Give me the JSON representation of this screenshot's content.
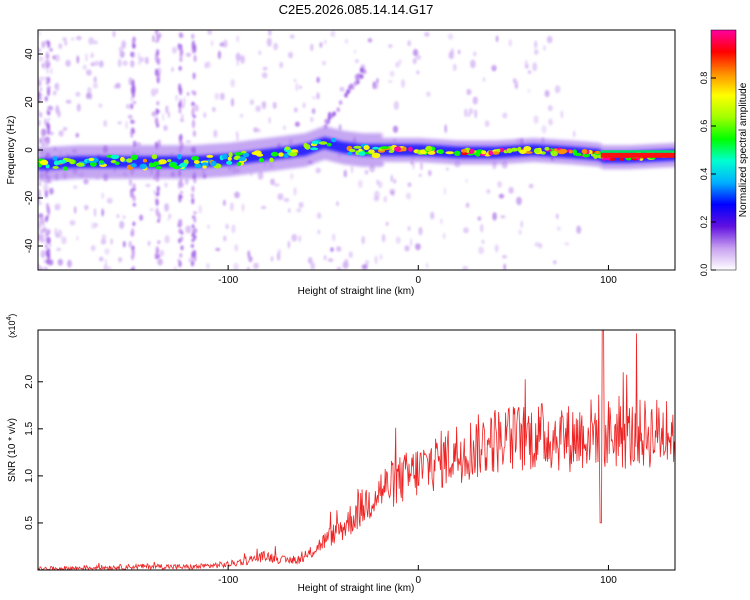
{
  "figure_title": "C2E5.2026.085.14.14.G17",
  "chart_data": [
    {
      "type": "heatmap",
      "title": "C2E5.2026.085.14.14.G17",
      "xlabel": "Height of straight line (km)",
      "ylabel": "Frequency (Hz)",
      "xlim": [
        -200,
        135
      ],
      "ylim": [
        -50,
        50
      ],
      "xticks": [
        -100,
        0,
        100
      ],
      "yticks": [
        -40,
        -20,
        0,
        20,
        40
      ],
      "colorbar": {
        "label": "Normalized spectral amplitude",
        "range": [
          0,
          1
        ],
        "ticks": [
          "0.0",
          "0.2",
          "0.4",
          "0.6",
          "0.8"
        ],
        "colors": [
          "#ffffff",
          "#c8a0f0",
          "#6010e0",
          "#0000ff",
          "#00b0ff",
          "#00ffd0",
          "#00ff00",
          "#a0ff00",
          "#ffff00",
          "#ff9000",
          "#ff0000",
          "#ff00a0"
        ]
      },
      "ridge": {
        "x": [
          -200,
          -180,
          -160,
          -140,
          -120,
          -100,
          -80,
          -60,
          -50,
          -40,
          -30,
          -20,
          0,
          20,
          40,
          60,
          80,
          95,
          96,
          110,
          135
        ],
        "y": [
          -6,
          -5,
          -5,
          -5,
          -5,
          -4,
          -2,
          0,
          3,
          1,
          0,
          0,
          0,
          -1,
          -1,
          0,
          -1,
          -2,
          -3,
          -3,
          -2
        ]
      },
      "branch": {
        "x": [
          -50,
          -45,
          -40,
          -35,
          -30
        ],
        "y": [
          10,
          15,
          20,
          26,
          32
        ]
      },
      "vertical_streaks_x": [
        -195,
        -150,
        -137,
        -125,
        -118
      ]
    },
    {
      "type": "line",
      "xlabel": "Height of straight line (km)",
      "ylabel": "SNR (10 * v/v)",
      "y_scale_label": "(x10",
      "y_scale_exponent": "4",
      "y_scale_close": ")",
      "xlim": [
        -200,
        135
      ],
      "ylim": [
        0,
        2.55
      ],
      "xticks": [
        -100,
        0,
        100
      ],
      "yticks": [
        "0.5",
        "1.0",
        "1.5",
        "2.0"
      ],
      "color": "#ee2222",
      "series": {
        "name": "SNR",
        "x": [
          -200,
          -180,
          -160,
          -140,
          -120,
          -100,
          -90,
          -80,
          -70,
          -60,
          -50,
          -40,
          -30,
          -20,
          -10,
          0,
          10,
          20,
          30,
          40,
          50,
          60,
          70,
          80,
          90,
          95,
          97,
          100,
          110,
          120,
          135
        ],
        "y": [
          0.01,
          0.02,
          0.03,
          0.04,
          0.03,
          0.06,
          0.1,
          0.15,
          0.1,
          0.12,
          0.3,
          0.45,
          0.65,
          0.85,
          0.95,
          1.05,
          1.15,
          1.25,
          1.3,
          1.38,
          1.4,
          1.42,
          1.42,
          1.4,
          1.45,
          1.5,
          1.45,
          1.45,
          1.42,
          1.45,
          1.48
        ]
      }
    }
  ]
}
